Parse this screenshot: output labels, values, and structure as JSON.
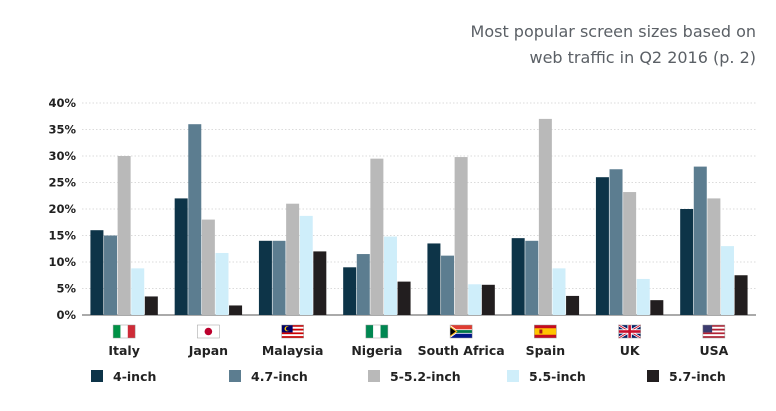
{
  "chart_data": {
    "type": "bar",
    "title_lines": [
      "Most popular screen sizes based on",
      "web traffic in Q2 2016 (p. 2)"
    ],
    "categories": [
      "Italy",
      "Japan",
      "Malaysia",
      "Nigeria",
      "South Africa",
      "Spain",
      "UK",
      "USA"
    ],
    "category_icons": [
      "italy-flag-icon",
      "japan-flag-icon",
      "malaysia-flag-icon",
      "nigeria-flag-icon",
      "south-africa-flag-icon",
      "spain-flag-icon",
      "uk-flag-icon",
      "usa-flag-icon"
    ],
    "series": [
      {
        "name": "4-inch",
        "color": "#0d3448",
        "values": [
          16,
          22,
          14,
          9,
          13.5,
          14.5,
          26,
          20
        ]
      },
      {
        "name": "4.7-inch",
        "color": "#5c7d90",
        "values": [
          15,
          36,
          14,
          11.5,
          11.2,
          14,
          27.5,
          28
        ]
      },
      {
        "name": "5-5.2-inch",
        "color": "#b9b9b9",
        "values": [
          30,
          18,
          21,
          29.5,
          29.8,
          37,
          23.2,
          22
        ]
      },
      {
        "name": "5.5-inch",
        "color": "#cfeefa",
        "values": [
          8.8,
          11.7,
          18.7,
          14.8,
          5.8,
          8.8,
          6.8,
          13
        ]
      },
      {
        "name": "5.7-inch",
        "color": "#221e1f",
        "values": [
          3.5,
          1.8,
          12,
          6.3,
          5.7,
          3.6,
          2.8,
          7.5
        ]
      }
    ],
    "ylim": [
      0,
      40
    ],
    "yticks": [
      "0%",
      "5%",
      "10%",
      "15%",
      "20%",
      "25%",
      "30%",
      "35%",
      "40%"
    ],
    "grid": true,
    "legend_position": "bottom"
  }
}
